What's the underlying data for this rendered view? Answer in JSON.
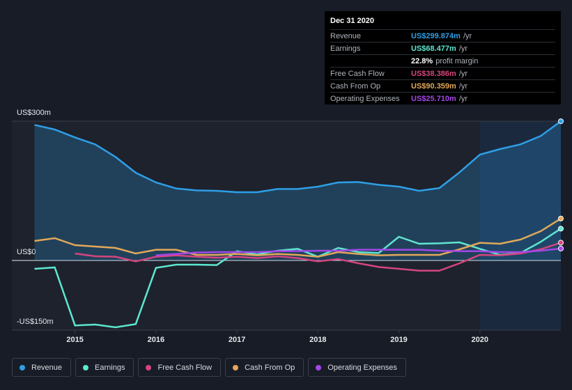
{
  "chart_data": {
    "type": "line",
    "x": [
      2014.5,
      2014.75,
      2015,
      2015.25,
      2015.5,
      2015.75,
      2016,
      2016.25,
      2016.5,
      2016.75,
      2017,
      2017.25,
      2017.5,
      2017.75,
      2018,
      2018.25,
      2018.5,
      2018.75,
      2019,
      2019.25,
      2019.5,
      2019.75,
      2020,
      2020.25,
      2020.5,
      2020.75,
      2021.0
    ],
    "series": [
      {
        "name": "Revenue",
        "color": "#2e9fe6",
        "fill": true,
        "values": [
          292,
          282,
          265,
          250,
          223,
          189,
          168,
          155,
          151,
          150,
          147,
          147,
          154,
          154,
          159,
          168,
          169,
          163,
          159,
          150,
          156,
          190,
          228,
          240,
          250,
          268,
          299.874
        ]
      },
      {
        "name": "Earnings",
        "color": "#5ee6d0",
        "fill": false,
        "values": [
          -18,
          -15,
          -140,
          -138,
          -144,
          -137,
          -16,
          -9,
          -9,
          -10,
          20,
          13,
          21,
          25,
          8,
          27,
          18,
          16,
          51,
          36,
          37,
          39,
          25,
          12,
          16,
          40,
          68.477
        ]
      },
      {
        "name": "Free Cash Flow",
        "color": "#d5457e",
        "fill": false,
        "values": [
          null,
          null,
          15,
          9,
          8,
          -2,
          8,
          11,
          8,
          6,
          8,
          5,
          9,
          5,
          -2,
          3,
          -6,
          -14,
          -18,
          -22,
          -22,
          -6,
          12,
          11,
          15,
          24,
          38.386
        ]
      },
      {
        "name": "Cash From Op",
        "color": "#e3a85a",
        "fill": false,
        "values": [
          42,
          48,
          33,
          30,
          27,
          15,
          23,
          23,
          12,
          12,
          14,
          11,
          14,
          12,
          8,
          18,
          14,
          11,
          12,
          12,
          12,
          24,
          38,
          36,
          45,
          63,
          90.359
        ]
      },
      {
        "name": "Operating Expenses",
        "color": "#a347e6",
        "fill": false,
        "values": [
          null,
          null,
          null,
          null,
          null,
          null,
          11,
          14,
          17,
          18,
          18,
          18,
          20,
          20,
          21,
          21,
          23,
          23,
          23,
          23,
          21,
          20,
          20,
          18,
          18,
          21,
          25.71
        ]
      }
    ],
    "xlim": [
      2014.22,
      2021.0
    ],
    "xticks": [
      2015,
      2016,
      2017,
      2018,
      2019,
      2020
    ],
    "ylim": [
      -150,
      300
    ],
    "yticks": [
      {
        "value": 300,
        "label": "US$300m"
      },
      {
        "value": 0,
        "label": "US$0"
      },
      {
        "value": -150,
        "label": "-US$150m"
      }
    ],
    "highlight_from": 2020,
    "tooltip": {
      "title": "Dec 31 2020",
      "rows": [
        {
          "label": "Revenue",
          "value": "US$299.874m",
          "unit": "/yr"
        },
        {
          "label": "Earnings",
          "value": "US$68.477m",
          "unit": "/yr"
        },
        {
          "label": "Free Cash Flow",
          "value": "US$38.386m",
          "unit": "/yr"
        },
        {
          "label": "Cash From Op",
          "value": "US$90.359m",
          "unit": "/yr"
        },
        {
          "label": "Operating Expenses",
          "value": "US$25.710m",
          "unit": "/yr"
        }
      ],
      "margin": {
        "value": "22.8%",
        "text": "profit margin"
      }
    }
  }
}
